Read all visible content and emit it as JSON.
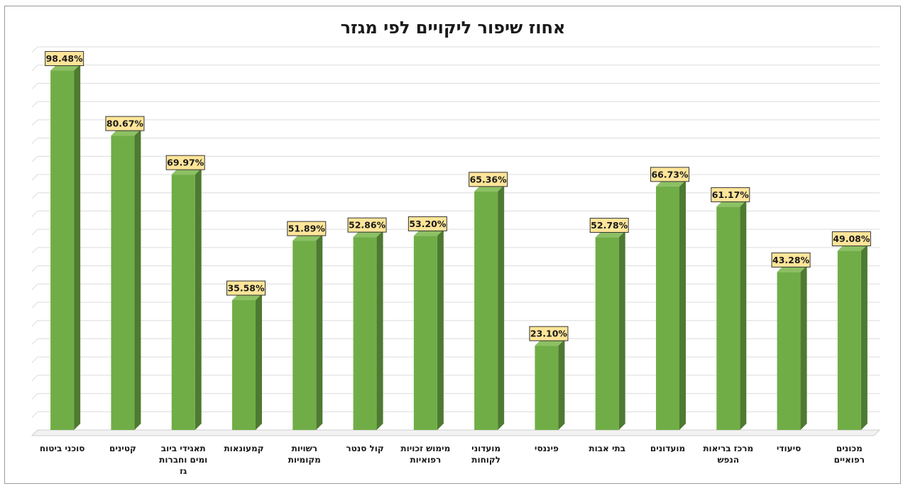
{
  "chart_data": {
    "type": "bar",
    "title": "אחוז שיפור ליקויים לפי מגזר",
    "categories": [
      [
        "סוכני ביטוח"
      ],
      [
        "קטינים"
      ],
      [
        "תאגידי ביוב",
        "ומים וחברות",
        "גז"
      ],
      [
        "קמעונאות"
      ],
      [
        "רשויות",
        "מקומיות"
      ],
      [
        "קול סנטר"
      ],
      [
        "מימוש זכויות",
        "רפואיות"
      ],
      [
        "מועדוני",
        "לקוחות"
      ],
      [
        "פיננסי"
      ],
      [
        "בתי אבות"
      ],
      [
        "מועדונים"
      ],
      [
        "מרכז בריאות",
        "הנפש"
      ],
      [
        "סיעודי"
      ],
      [
        "מכונים",
        "רפואיים"
      ]
    ],
    "values": [
      98.48,
      80.67,
      69.97,
      35.58,
      51.89,
      52.86,
      53.2,
      65.36,
      23.1,
      52.78,
      66.73,
      61.17,
      43.28,
      49.08
    ],
    "value_labels": [
      "98.48%",
      "80.67%",
      "69.97%",
      "35.58%",
      "51.89%",
      "52.86%",
      "53.20%",
      "65.36%",
      "23.10%",
      "52.78%",
      "66.73%",
      "61.17%",
      "43.28%",
      "49.08%"
    ],
    "ylim": [
      0,
      105
    ],
    "grid": true,
    "legend": "none",
    "colors": {
      "bar_front": "#70ad47",
      "bar_side": "#4e7a31",
      "bar_top": "#8cc063",
      "label_fill": "#fee599",
      "label_border": "#333333",
      "grid": "#dcdcdc"
    }
  }
}
